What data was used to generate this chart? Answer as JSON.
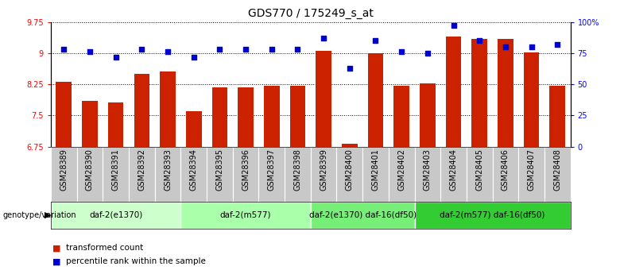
{
  "title": "GDS770 / 175249_s_at",
  "samples": [
    "GSM28389",
    "GSM28390",
    "GSM28391",
    "GSM28392",
    "GSM28393",
    "GSM28394",
    "GSM28395",
    "GSM28396",
    "GSM28397",
    "GSM28398",
    "GSM28399",
    "GSM28400",
    "GSM28401",
    "GSM28402",
    "GSM28403",
    "GSM28404",
    "GSM28405",
    "GSM28406",
    "GSM28407",
    "GSM28408"
  ],
  "bar_values": [
    8.3,
    7.85,
    7.82,
    8.5,
    8.55,
    7.6,
    8.18,
    8.18,
    8.22,
    8.22,
    9.05,
    6.82,
    9.0,
    8.22,
    8.28,
    9.4,
    9.35,
    9.35,
    9.02,
    8.22
  ],
  "dot_values": [
    78,
    76,
    72,
    78,
    76,
    72,
    78,
    78,
    78,
    78,
    87,
    63,
    85,
    76,
    75,
    97,
    85,
    80,
    80,
    82
  ],
  "ylim_left": [
    6.75,
    9.75
  ],
  "ylim_right": [
    0,
    100
  ],
  "yticks_left": [
    6.75,
    7.5,
    8.25,
    9.0,
    9.75
  ],
  "ytick_labels_left": [
    "6.75",
    "7.5",
    "8.25",
    "9",
    "9.75"
  ],
  "yticks_right": [
    0,
    25,
    50,
    75,
    100
  ],
  "ytick_labels_right": [
    "0",
    "25",
    "50",
    "75",
    "100%"
  ],
  "bar_color": "#cc2200",
  "dot_color": "#0000cc",
  "bg_color": "#ffffff",
  "sample_label_bg": "#c8c8c8",
  "groups": [
    {
      "label": "daf-2(e1370)",
      "start": 0,
      "end": 5,
      "color": "#ccffcc"
    },
    {
      "label": "daf-2(m577)",
      "start": 5,
      "end": 10,
      "color": "#aaffaa"
    },
    {
      "label": "daf-2(e1370) daf-16(df50)",
      "start": 10,
      "end": 14,
      "color": "#77ee77"
    },
    {
      "label": "daf-2(m577) daf-16(df50)",
      "start": 14,
      "end": 20,
      "color": "#33cc33"
    }
  ],
  "legend_bar_label": "transformed count",
  "legend_dot_label": "percentile rank within the sample",
  "genotype_label": "genotype/variation",
  "title_fontsize": 10,
  "tick_fontsize": 7
}
